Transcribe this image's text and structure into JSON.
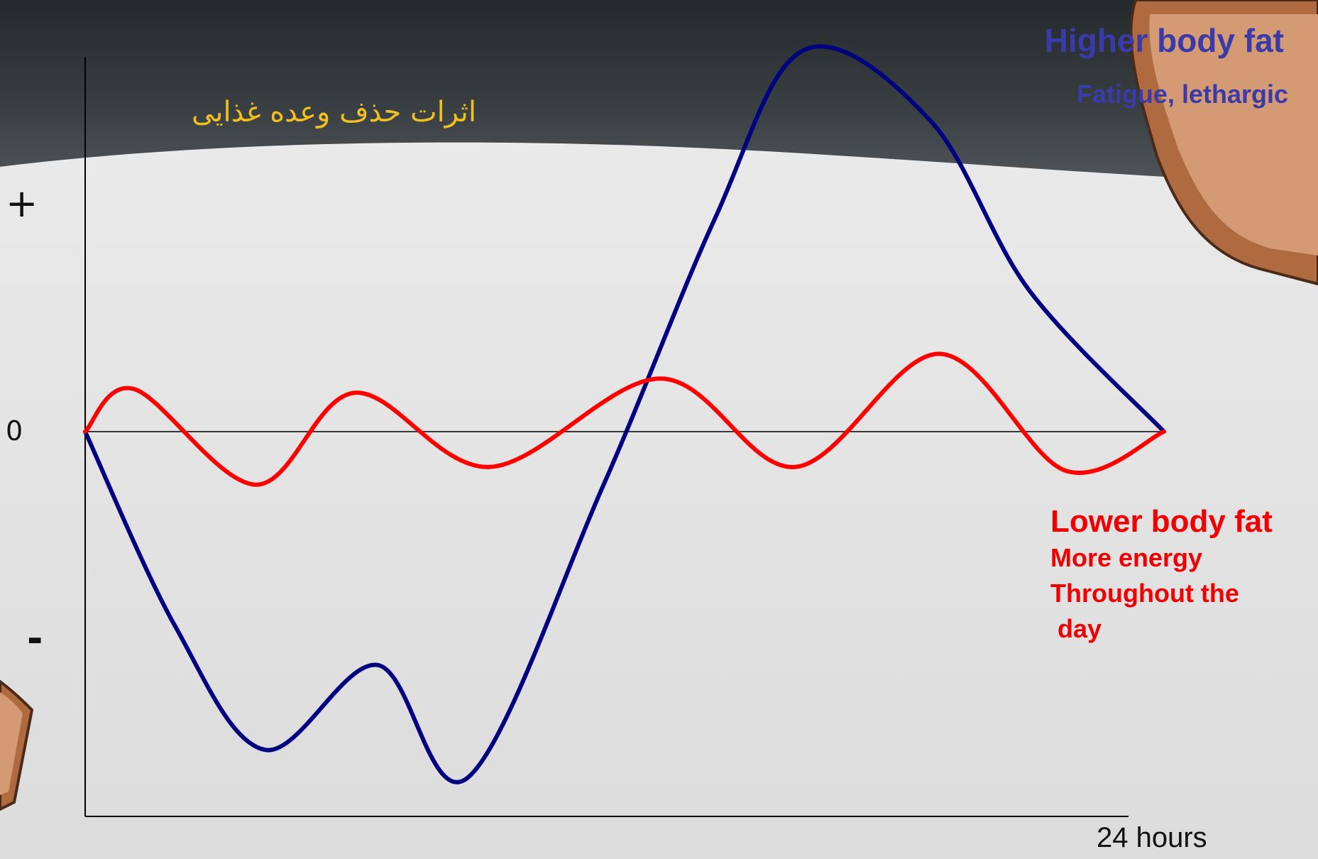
{
  "title": "اثرات حذف وعده غذایی",
  "chart_data": {
    "type": "line",
    "xlabel": "24 hours",
    "y_tick_labels": [
      "+",
      "0",
      "-"
    ],
    "series": [
      {
        "color": "#000080",
        "annotations": [
          "Higher body fat",
          "Fatigue, lethargic"
        ],
        "x": [
          0,
          2,
          4,
          6.5,
          8.5,
          11.5,
          14,
          16,
          18.8,
          21,
          24
        ],
        "y": [
          0,
          -0.55,
          -0.9,
          -0.66,
          -0.98,
          -0.16,
          0.6,
          1.08,
          0.88,
          0.4,
          0
        ]
      },
      {
        "color": "#ff0000",
        "annotations": [
          "Lower body fat",
          "More energy",
          "Throughout the",
          " day"
        ],
        "x": [
          0,
          1.1,
          3.8,
          6,
          9,
          12.8,
          15.8,
          19,
          21.8,
          24
        ],
        "y": [
          0,
          0.12,
          -0.15,
          0.11,
          -0.1,
          0.15,
          -0.1,
          0.22,
          -0.11,
          0
        ]
      }
    ],
    "xlim": [
      0,
      24
    ],
    "ylim": [
      -1.25,
      1.2
    ],
    "zero_line": true,
    "grid": false
  },
  "colors": {
    "header_dark": "#2e3236",
    "background_light": "#e6e6e6",
    "title": "#f0c020",
    "blue_text": "#3a3aa8",
    "red_text": "#f00000"
  }
}
